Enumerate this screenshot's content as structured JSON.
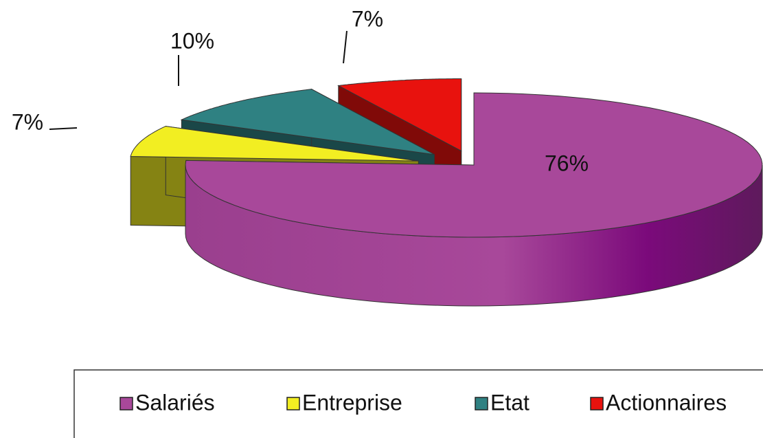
{
  "chart_data": {
    "type": "pie3d",
    "categories": [
      "Salariés",
      "Entreprise",
      "Etat",
      "Actionnaires"
    ],
    "values": [
      76,
      7,
      10,
      7
    ],
    "value_labels": [
      "76%",
      "7%",
      "10%",
      "7%"
    ],
    "colors": [
      "#a8489a",
      "#f2ee22",
      "#2f8182",
      "#e8120e"
    ],
    "legend": "bottom"
  }
}
